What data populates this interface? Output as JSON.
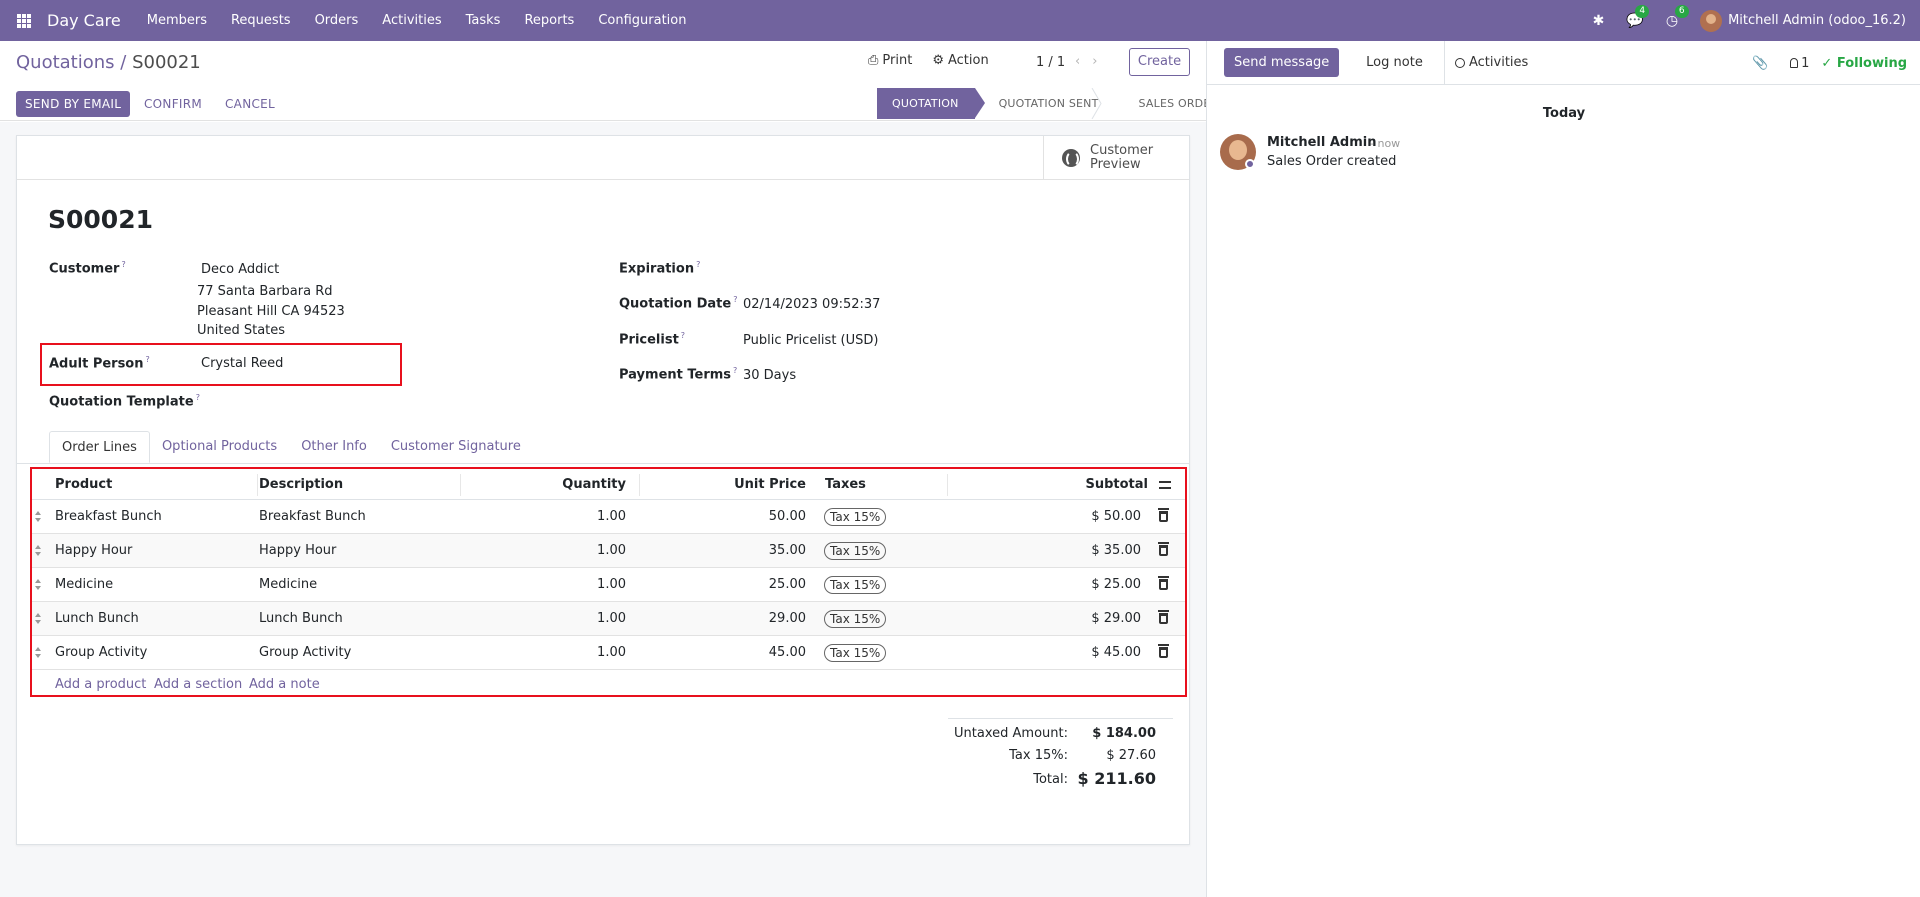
{
  "navbar": {
    "brand": "Day Care",
    "menu": [
      "Members",
      "Requests",
      "Orders",
      "Activities",
      "Tasks",
      "Reports",
      "Configuration"
    ],
    "messages_count": "4",
    "activities_count": "6",
    "user": "Mitchell Admin (odoo_16.2)"
  },
  "control_panel": {
    "breadcrumb_parent": "Quotations",
    "breadcrumb_sep": " / ",
    "breadcrumb_current": "S00021",
    "print_label": "Print",
    "action_label": "Action",
    "pager": "1 / 1",
    "create_label": "Create"
  },
  "statusbar": {
    "send_email": "SEND BY EMAIL",
    "confirm": "CONFIRM",
    "cancel": "CANCEL",
    "stages": [
      "QUOTATION",
      "QUOTATION SENT",
      "SALES ORDER"
    ]
  },
  "form": {
    "customer_preview": [
      "Customer",
      "Preview"
    ],
    "name": "S00021",
    "customer_label": "Customer",
    "customer_name": "Deco Addict",
    "customer_address": [
      "77 Santa Barbara Rd",
      "Pleasant Hill CA 94523",
      "United States"
    ],
    "adult_label": "Adult Person",
    "adult_value": "Crystal Reed",
    "template_label": "Quotation Template",
    "expiration_label": "Expiration",
    "quotation_date_label": "Quotation Date",
    "quotation_date_value": "02/14/2023 09:52:37",
    "pricelist_label": "Pricelist",
    "pricelist_value": "Public Pricelist (USD)",
    "payment_terms_label": "Payment Terms",
    "payment_terms_value": "30 Days",
    "help_mark": "?"
  },
  "tabs": [
    "Order Lines",
    "Optional Products",
    "Other Info",
    "Customer Signature"
  ],
  "order_lines": {
    "headers": {
      "product": "Product",
      "description": "Description",
      "quantity": "Quantity",
      "unit_price": "Unit Price",
      "taxes": "Taxes",
      "subtotal": "Subtotal"
    },
    "rows": [
      {
        "product": "Breakfast Bunch",
        "description": "Breakfast Bunch",
        "quantity": "1.00",
        "unit_price": "50.00",
        "tax": "Tax 15%",
        "subtotal": "$ 50.00"
      },
      {
        "product": "Happy Hour",
        "description": "Happy Hour",
        "quantity": "1.00",
        "unit_price": "35.00",
        "tax": "Tax 15%",
        "subtotal": "$ 35.00"
      },
      {
        "product": "Medicine",
        "description": "Medicine",
        "quantity": "1.00",
        "unit_price": "25.00",
        "tax": "Tax 15%",
        "subtotal": "$ 25.00"
      },
      {
        "product": "Lunch Bunch",
        "description": "Lunch Bunch",
        "quantity": "1.00",
        "unit_price": "29.00",
        "tax": "Tax 15%",
        "subtotal": "$ 29.00"
      },
      {
        "product": "Group Activity",
        "description": "Group Activity",
        "quantity": "1.00",
        "unit_price": "45.00",
        "tax": "Tax 15%",
        "subtotal": "$ 45.00"
      }
    ],
    "add_product": "Add a product",
    "add_section": "Add a section",
    "add_note": "Add a note"
  },
  "totals": {
    "untaxed_label": "Untaxed Amount:",
    "untaxed_value": "$ 184.00",
    "tax_label": "Tax 15%:",
    "tax_value": "$ 27.60",
    "total_label": "Total:",
    "total_value": "$ 211.60"
  },
  "chatter": {
    "send_message": "Send message",
    "log_note": "Log note",
    "activities": "Activities",
    "followers_count": "1",
    "following": "Following",
    "today": "Today",
    "author": "Mitchell Admin",
    "time": "- now",
    "body": "Sales Order created"
  }
}
